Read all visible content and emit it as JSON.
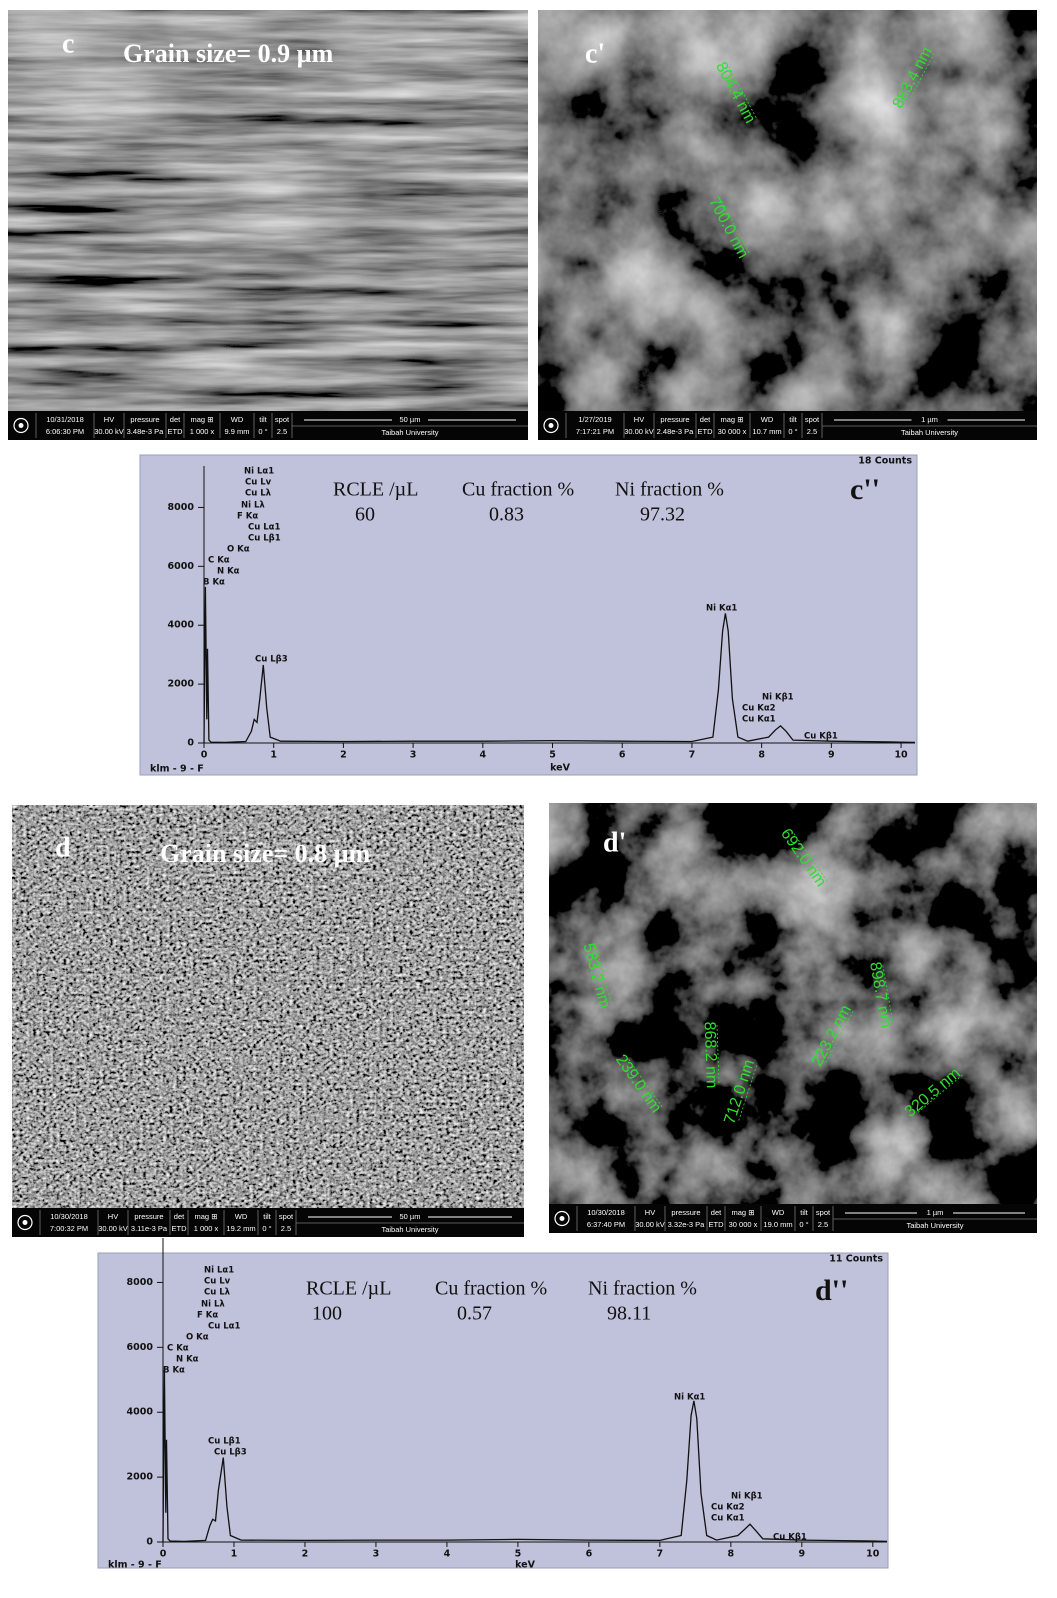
{
  "panels": {
    "c": {
      "letter": "c",
      "grain": "Grain size= 0.9 µm",
      "databar": {
        "date": "10/31/2018",
        "time": "6:06:30 PM",
        "fields": [
          {
            "label": "HV",
            "value": "30.00 kV"
          },
          {
            "label": "pressure",
            "value": "3.48e-3 Pa"
          },
          {
            "label": "det",
            "value": "ETD"
          },
          {
            "label": "mag ⊞",
            "value": "1 000 x"
          },
          {
            "label": "WD",
            "value": "9.9 mm"
          },
          {
            "label": "tilt",
            "value": "0 °"
          },
          {
            "label": "spot",
            "value": "2.5"
          }
        ],
        "scale": "50 µm",
        "institution": "Taibah University"
      }
    },
    "c_prime": {
      "letter": "c'",
      "measurements": [
        "804.4 nm",
        "883.4 nm",
        "700.0 nm"
      ],
      "databar": {
        "date": "1/27/2019",
        "time": "7:17:21 PM",
        "fields": [
          {
            "label": "HV",
            "value": "30.00 kV"
          },
          {
            "label": "pressure",
            "value": "2.48e-3 Pa"
          },
          {
            "label": "det",
            "value": "ETD"
          },
          {
            "label": "mag ⊞",
            "value": "30 000 x"
          },
          {
            "label": "WD",
            "value": "10.7 mm"
          },
          {
            "label": "tilt",
            "value": "0 °"
          },
          {
            "label": "spot",
            "value": "2.5"
          }
        ],
        "scale": "1 µm",
        "institution": "Taibah University"
      }
    },
    "d": {
      "letter": "d",
      "grain": "Grain size= 0.8 µm",
      "databar": {
        "date": "10/30/2018",
        "time": "7:00:32 PM",
        "fields": [
          {
            "label": "HV",
            "value": "30.00 kV"
          },
          {
            "label": "pressure",
            "value": "3.11e-3 Pa"
          },
          {
            "label": "det",
            "value": "ETD"
          },
          {
            "label": "mag ⊞",
            "value": "1 000 x"
          },
          {
            "label": "WD",
            "value": "19.2 mm"
          },
          {
            "label": "tilt",
            "value": "0 °"
          },
          {
            "label": "spot",
            "value": "2.5"
          }
        ],
        "scale": "50 µm",
        "institution": "Taibah University"
      }
    },
    "d_prime": {
      "letter": "d'",
      "measurements": [
        "692.0 nm",
        "583.2 nm",
        "868.2 nm",
        "898.7 nm",
        "223.2 nm",
        "239.0 nm",
        "712.0 nm",
        "320.5 nm"
      ],
      "databar": {
        "date": "10/30/2018",
        "time": "6:37:40 PM",
        "fields": [
          {
            "label": "HV",
            "value": "30.00 kV"
          },
          {
            "label": "pressure",
            "value": "3.32e-3 Pa"
          },
          {
            "label": "det",
            "value": "ETD"
          },
          {
            "label": "mag ⊞",
            "value": "30 000 x"
          },
          {
            "label": "WD",
            "value": "19.0 mm"
          },
          {
            "label": "tilt",
            "value": "0 °"
          },
          {
            "label": "spot",
            "value": "2.5"
          }
        ],
        "scale": "1 µm",
        "institution": "Taibah University"
      }
    }
  },
  "chart_data": [
    {
      "type": "line",
      "panel_label": "c''",
      "counts_label": "18 Counts",
      "footer": "klm - 9 - F",
      "xlabel": "keV",
      "stats": [
        {
          "label": "RCLE /µL",
          "value": 60
        },
        {
          "label": "Cu fraction %",
          "value": 0.83
        },
        {
          "label": "Ni fraction %",
          "value": 97.32
        }
      ],
      "peak_labels": [
        "Ni Lα1",
        "Cu Lv",
        "Cu Lλ",
        "Ni Lλ",
        "F Kα",
        "Cu Lα1",
        "Cu Lβ1",
        "O Kα",
        "C Kα",
        "N Kα",
        "B Kα",
        "Cu Lβ3",
        "Ni Kα1",
        "Ni Kβ1",
        "Cu Kα2",
        "Cu Kα1",
        "Cu Kβ1"
      ],
      "x": [
        0,
        0.02,
        0.04,
        0.05,
        0.07,
        0.1,
        0.3,
        0.6,
        0.68,
        0.72,
        0.76,
        0.8,
        0.85,
        0.9,
        0.95,
        1.1,
        2,
        3,
        4,
        5,
        6,
        7,
        7.3,
        7.38,
        7.44,
        7.48,
        7.52,
        7.58,
        7.66,
        7.8,
        8.1,
        8.2,
        8.27,
        8.35,
        8.45,
        9,
        10,
        10.2
      ],
      "values": [
        0,
        5300,
        800,
        3200,
        100,
        30,
        20,
        50,
        400,
        800,
        700,
        1500,
        2650,
        1200,
        200,
        60,
        50,
        60,
        60,
        80,
        60,
        50,
        200,
        1800,
        3800,
        4400,
        3800,
        1500,
        200,
        60,
        200,
        450,
        580,
        400,
        100,
        60,
        30,
        20
      ],
      "color": "#111111",
      "background": "#bfc2da",
      "xlim": [
        0,
        10.2
      ],
      "xticks": [
        0,
        1,
        2,
        3,
        4,
        5,
        6,
        7,
        8,
        9,
        10
      ],
      "ylim": [
        0,
        9000
      ],
      "yticks": [
        0,
        2000,
        4000,
        6000,
        8000
      ]
    },
    {
      "type": "line",
      "panel_label": "d''",
      "counts_label": "11 Counts",
      "footer": "klm - 9 - F",
      "xlabel": "keV",
      "stats": [
        {
          "label": "RCLE /µL",
          "value": 100
        },
        {
          "label": "Cu fraction %",
          "value": 0.57
        },
        {
          "label": "Ni fraction %",
          "value": 98.11
        }
      ],
      "peak_labels": [
        "Ni Lα1",
        "Cu Lv",
        "Cu Lλ",
        "Ni Lλ",
        "F Kα",
        "Cu Lα1",
        "O Kα",
        "C Kα",
        "N Kα",
        "B Kα",
        "Cu Lβ1",
        "Cu Lβ3",
        "Ni Kα1",
        "Ni Kβ1",
        "Cu Kα2",
        "Cu Kα1",
        "Cu Kβ1"
      ],
      "x": [
        0,
        0.02,
        0.04,
        0.05,
        0.07,
        0.1,
        0.3,
        0.6,
        0.66,
        0.7,
        0.74,
        0.78,
        0.85,
        0.9,
        0.95,
        1.1,
        2,
        3,
        4,
        5,
        6,
        7,
        7.3,
        7.38,
        7.44,
        7.48,
        7.52,
        7.58,
        7.66,
        7.8,
        8.1,
        8.2,
        8.27,
        8.35,
        8.45,
        9,
        10,
        10.2
      ],
      "values": [
        0,
        5300,
        900,
        3150,
        100,
        30,
        20,
        50,
        500,
        700,
        650,
        1600,
        2600,
        1100,
        200,
        60,
        50,
        60,
        60,
        80,
        60,
        50,
        200,
        1900,
        3900,
        4350,
        3800,
        1500,
        200,
        60,
        200,
        400,
        550,
        350,
        100,
        60,
        30,
        20
      ],
      "color": "#111111",
      "background": "#bfc2da",
      "xlim": [
        0,
        10.2
      ],
      "xticks": [
        0,
        1,
        2,
        3,
        4,
        5,
        6,
        7,
        8,
        9,
        10
      ],
      "ylim": [
        0,
        9000
      ],
      "yticks": [
        0,
        2000,
        4000,
        6000,
        8000
      ]
    }
  ]
}
